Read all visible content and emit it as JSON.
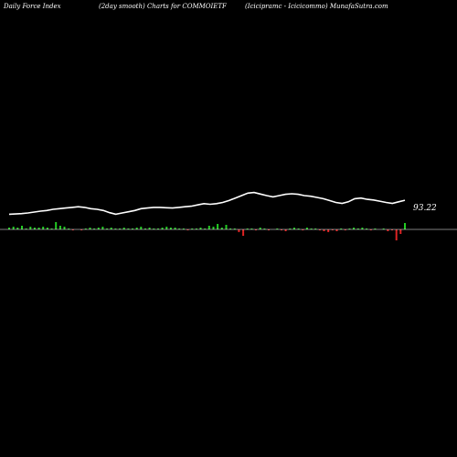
{
  "header": {
    "left": "Daily Force  Index",
    "middle": "(2day smooth) Charts for COMMOIETF",
    "right": "(Icicipramc - Icicicommo) MunafaSutra.com"
  },
  "chart_data": {
    "type": "line",
    "title": "(2day smooth) Charts for COMMOIETF",
    "last_value_label": "93.22",
    "colors": {
      "background": "#000000",
      "line": "#ffffff",
      "positive": "#22cc22",
      "negative": "#dd2222",
      "zero_line": "#ffffff"
    },
    "force_line": [
      40,
      41,
      42,
      44,
      47,
      50,
      52,
      56,
      58,
      60,
      62,
      64,
      62,
      58,
      56,
      52,
      45,
      40,
      44,
      48,
      52,
      58,
      60,
      62,
      62,
      61,
      60,
      62,
      64,
      66,
      70,
      74,
      72,
      74,
      78,
      84,
      92,
      100,
      108,
      110,
      105,
      100,
      96,
      100,
      104,
      106,
      104,
      100,
      98,
      94,
      90,
      84,
      78,
      75,
      80,
      90,
      92,
      88,
      86,
      82,
      78,
      75,
      80,
      85
    ],
    "histogram": [
      2,
      3,
      2,
      4,
      1,
      3,
      2,
      2,
      3,
      2,
      1,
      8,
      4,
      3,
      1,
      -1,
      0,
      -1,
      1,
      2,
      1,
      2,
      3,
      1,
      2,
      1,
      1,
      2,
      1,
      1,
      2,
      3,
      1,
      2,
      1,
      1,
      2,
      3,
      2,
      2,
      1,
      1,
      -1,
      1,
      1,
      2,
      1,
      4,
      3,
      6,
      2,
      5,
      1,
      1,
      -3,
      -7,
      1,
      1,
      -1,
      2,
      1,
      -1,
      0,
      1,
      -1,
      -2,
      1,
      2,
      1,
      -1,
      2,
      1,
      1,
      -1,
      -2,
      -3,
      -1,
      -2,
      1,
      -1,
      1,
      2,
      1,
      2,
      1,
      -1,
      1,
      0,
      1,
      -2,
      -1,
      -12,
      -5,
      7
    ]
  }
}
